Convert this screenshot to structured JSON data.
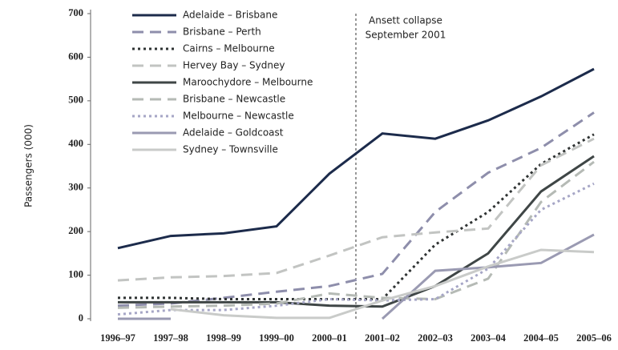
{
  "chart_data": {
    "type": "line",
    "y_label": "Passengers (000)",
    "annotation": [
      "Ansett collapse",
      "September 2001"
    ],
    "annotation_at": 4.5,
    "categories": [
      "1996–97",
      "1997–98",
      "1998–99",
      "1999–00",
      "2000–01",
      "2001–02",
      "2002–03",
      "2003–04",
      "2004–05",
      "2005–06"
    ],
    "ylim": [
      0,
      700
    ],
    "yticks": [
      0,
      100,
      200,
      300,
      400,
      500,
      600,
      700
    ],
    "legend": "top-left",
    "series": [
      {
        "name": "Adelaide – Brisbane",
        "color": "#1c2b4b",
        "style": "solid",
        "values": [
          162,
          190,
          196,
          212,
          333,
          425,
          413,
          455,
          510,
          573
        ]
      },
      {
        "name": "Brisbane – Perth",
        "color": "#8e8eab",
        "style": "dashed",
        "values": [
          30,
          35,
          48,
          62,
          75,
          103,
          245,
          335,
          392,
          473
        ]
      },
      {
        "name": "Cairns – Melbourne",
        "color": "#2f3333",
        "style": "dotted",
        "values": [
          48,
          48,
          45,
          45,
          45,
          45,
          170,
          245,
          355,
          423
        ]
      },
      {
        "name": "Hervey Bay – Sydney",
        "color": "#c2c4c2",
        "style": "dashed",
        "values": [
          88,
          95,
          98,
          105,
          145,
          187,
          198,
          207,
          352,
          413
        ]
      },
      {
        "name": "Maroochydore – Melbourne",
        "color": "#3f4646",
        "style": "solid",
        "values": [
          38,
          38,
          38,
          38,
          30,
          28,
          75,
          150,
          292,
          373
        ]
      },
      {
        "name": "Brisbane – Newcastle",
        "color": "#b5bab5",
        "style": "dashed",
        "values": [
          25,
          28,
          30,
          35,
          58,
          48,
          45,
          92,
          268,
          360
        ]
      },
      {
        "name": "Melbourne – Newcastle",
        "color": "#a6a6c6",
        "style": "dotted",
        "values": [
          10,
          20,
          20,
          30,
          45,
          42,
          45,
          115,
          250,
          310
        ]
      },
      {
        "name": "Adelaide – Goldcoast",
        "color": "#9a9ab2",
        "style": "solid",
        "values": [
          0,
          0,
          null,
          null,
          null,
          0,
          110,
          118,
          128,
          193
        ]
      },
      {
        "name": "Sydney – Townsville",
        "color": "#c9cbc9",
        "style": "solid",
        "values": [
          null,
          22,
          8,
          2,
          2,
          42,
          75,
          120,
          158,
          153
        ]
      }
    ]
  }
}
